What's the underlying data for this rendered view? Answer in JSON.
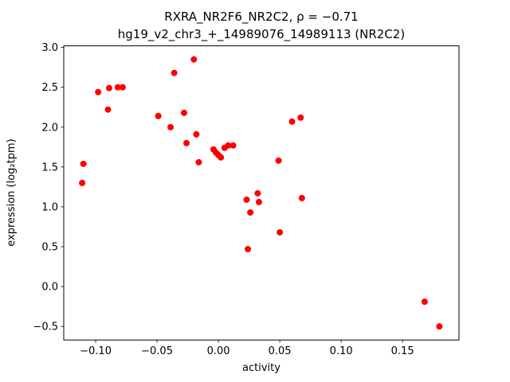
{
  "chart_data": {
    "type": "scatter",
    "title_line1": "RXRA_NR2F6_NR2C2, ρ = −0.71",
    "title_line2": "hg19_v2_chr3_+_14989076_14989113 (NR2C2)",
    "xlabel": "activity",
    "ylabel": "expression (log₂tpm)",
    "correlation_rho": -0.71,
    "marker_color": "#ff0000",
    "marker_radius": 4,
    "xlim": [
      -0.126,
      0.196
    ],
    "ylim": [
      -0.67,
      3.02
    ],
    "x_ticks": [
      -0.1,
      -0.05,
      0.0,
      0.05,
      0.1,
      0.15
    ],
    "x_ticklabels": [
      "−0.10",
      "−0.05",
      "0.00",
      "0.05",
      "0.10",
      "0.15"
    ],
    "y_ticks": [
      -0.5,
      0.0,
      0.5,
      1.0,
      1.5,
      2.0,
      2.5,
      3.0
    ],
    "y_ticklabels": [
      "−0.5",
      "0.0",
      "0.5",
      "1.0",
      "1.5",
      "2.0",
      "2.5",
      "3.0"
    ],
    "points": [
      [
        -0.11,
        1.54
      ],
      [
        -0.111,
        1.3
      ],
      [
        -0.098,
        2.44
      ],
      [
        -0.09,
        2.22
      ],
      [
        -0.089,
        2.49
      ],
      [
        -0.082,
        2.5
      ],
      [
        -0.078,
        2.5
      ],
      [
        -0.049,
        2.14
      ],
      [
        -0.039,
        2.0
      ],
      [
        -0.036,
        2.68
      ],
      [
        -0.028,
        2.18
      ],
      [
        -0.026,
        1.8
      ],
      [
        -0.02,
        2.85
      ],
      [
        -0.018,
        1.91
      ],
      [
        -0.016,
        1.56
      ],
      [
        -0.004,
        1.72
      ],
      [
        -0.002,
        1.68
      ],
      [
        0.0,
        1.65
      ],
      [
        0.002,
        1.62
      ],
      [
        0.005,
        1.74
      ],
      [
        0.008,
        1.77
      ],
      [
        0.012,
        1.77
      ],
      [
        0.023,
        1.09
      ],
      [
        0.024,
        0.47
      ],
      [
        0.026,
        0.93
      ],
      [
        0.032,
        1.17
      ],
      [
        0.033,
        1.06
      ],
      [
        0.049,
        1.58
      ],
      [
        0.05,
        0.68
      ],
      [
        0.06,
        2.07
      ],
      [
        0.067,
        2.12
      ],
      [
        0.068,
        1.11
      ],
      [
        0.168,
        -0.19
      ],
      [
        0.18,
        -0.5
      ]
    ]
  }
}
